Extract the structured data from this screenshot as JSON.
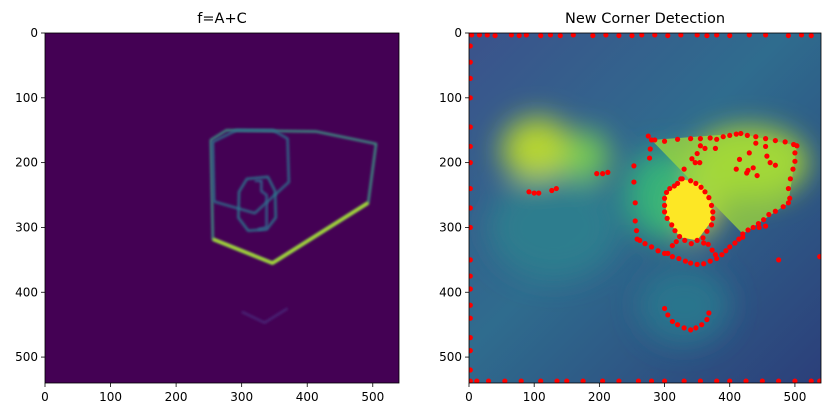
{
  "chart_data": [
    {
      "type": "image",
      "title": "f=A+C",
      "xlim": [
        0,
        540
      ],
      "ylim": [
        540,
        0
      ],
      "x_ticks": [
        0,
        100,
        200,
        300,
        400,
        500
      ],
      "y_ticks": [
        0,
        100,
        200,
        300,
        400,
        500
      ],
      "colormap": "viridis",
      "background_color": "#440154",
      "features": [
        {
          "name": "box-outer-right",
          "color": "#3e9a86",
          "points": [
            [
              277,
              150
            ],
            [
              414,
              152
            ],
            [
              505,
              171
            ],
            [
              493,
              262
            ],
            [
              347,
              355
            ],
            [
              256,
              318
            ],
            [
              253,
              165
            ]
          ]
        },
        {
          "name": "box-inner-face",
          "color": "#2f6f8c",
          "points": [
            [
              256,
              168
            ],
            [
              292,
              150
            ],
            [
              348,
              150
            ],
            [
              370,
              163
            ],
            [
              372,
              230
            ],
            [
              320,
              278
            ],
            [
              258,
              260
            ]
          ]
        },
        {
          "name": "octagon",
          "color": "#2a788e",
          "points": [
            [
              308,
              225
            ],
            [
              340,
              222
            ],
            [
              351,
              244
            ],
            [
              352,
              285
            ],
            [
              338,
              303
            ],
            [
              310,
              305
            ],
            [
              295,
              285
            ],
            [
              296,
              245
            ]
          ]
        },
        {
          "name": "small-step",
          "color": "#31688e",
          "points": [
            [
              320,
              228
            ],
            [
              330,
              228
            ],
            [
              330,
              244
            ],
            [
              338,
              250
            ],
            [
              338,
              300
            ],
            [
              325,
              303
            ]
          ]
        },
        {
          "name": "bright-base-edge",
          "color": "#b5de2b",
          "points": [
            [
              256,
              318
            ],
            [
              347,
              355
            ],
            [
              493,
              262
            ]
          ]
        },
        {
          "name": "faint-lower-feature",
          "color": "#482878",
          "points": [
            [
              300,
              430
            ],
            [
              335,
              447
            ],
            [
              370,
              425
            ]
          ]
        }
      ]
    },
    {
      "type": "scatter",
      "title": "New Corner Detection",
      "xlim": [
        0,
        540
      ],
      "ylim": [
        540,
        0
      ],
      "x_ticks": [
        0,
        100,
        200,
        300,
        400,
        500
      ],
      "y_ticks": [
        0,
        100,
        200,
        300,
        400,
        500
      ],
      "colormap": "viridis",
      "marker_color": "#ff0000",
      "background_color": "#3b528b",
      "blobs": [
        {
          "x": 105,
          "y": 180,
          "rx": 55,
          "ry": 50,
          "color": "#c4e12a"
        },
        {
          "x": 180,
          "y": 190,
          "rx": 35,
          "ry": 40,
          "color": "#7ad151"
        },
        {
          "x": 430,
          "y": 200,
          "rx": 90,
          "ry": 55,
          "color": "#b5de2b"
        },
        {
          "x": 340,
          "y": 265,
          "rx": 45,
          "ry": 50,
          "color": "#fde725"
        },
        {
          "x": 300,
          "y": 250,
          "rx": 60,
          "ry": 70,
          "color": "#35b779"
        },
        {
          "x": 330,
          "y": 420,
          "rx": 70,
          "ry": 60,
          "color": "#2a788e"
        },
        {
          "x": 130,
          "y": 300,
          "rx": 100,
          "ry": 80,
          "color": "#2c7f8e"
        }
      ],
      "corners": [
        [
          4,
          3
        ],
        [
          16,
          3
        ],
        [
          28,
          3
        ],
        [
          40,
          4
        ],
        [
          65,
          3
        ],
        [
          77,
          4
        ],
        [
          88,
          3
        ],
        [
          110,
          4
        ],
        [
          125,
          3
        ],
        [
          140,
          4
        ],
        [
          160,
          3
        ],
        [
          190,
          4
        ],
        [
          210,
          3
        ],
        [
          230,
          4
        ],
        [
          250,
          4
        ],
        [
          265,
          3
        ],
        [
          285,
          3
        ],
        [
          305,
          4
        ],
        [
          325,
          3
        ],
        [
          350,
          3
        ],
        [
          365,
          4
        ],
        [
          380,
          3
        ],
        [
          400,
          4
        ],
        [
          430,
          3
        ],
        [
          455,
          3
        ],
        [
          490,
          4
        ],
        [
          510,
          3
        ],
        [
          525,
          4
        ],
        [
          2,
          20
        ],
        [
          2,
          45
        ],
        [
          2,
          70
        ],
        [
          2,
          100
        ],
        [
          2,
          145
        ],
        [
          2,
          175
        ],
        [
          2,
          200
        ],
        [
          2,
          240
        ],
        [
          2,
          270
        ],
        [
          2,
          300
        ],
        [
          2,
          350
        ],
        [
          2,
          375
        ],
        [
          2,
          395
        ],
        [
          2,
          420
        ],
        [
          2,
          440
        ],
        [
          2,
          470
        ],
        [
          2,
          490
        ],
        [
          2,
          520
        ],
        [
          2,
          537
        ],
        [
          12,
          537
        ],
        [
          30,
          537
        ],
        [
          55,
          537
        ],
        [
          80,
          537
        ],
        [
          110,
          537
        ],
        [
          135,
          537
        ],
        [
          150,
          537
        ],
        [
          175,
          537
        ],
        [
          205,
          537
        ],
        [
          230,
          537
        ],
        [
          260,
          537
        ],
        [
          280,
          537
        ],
        [
          300,
          537
        ],
        [
          330,
          537
        ],
        [
          355,
          537
        ],
        [
          380,
          537
        ],
        [
          400,
          537
        ],
        [
          425,
          537
        ],
        [
          450,
          537
        ],
        [
          475,
          537
        ],
        [
          500,
          537
        ],
        [
          525,
          537
        ],
        [
          538,
          537
        ],
        [
          538,
          345
        ],
        [
          475,
          350
        ],
        [
          92,
          245
        ],
        [
          100,
          247
        ],
        [
          107,
          247
        ],
        [
          127,
          243
        ],
        [
          134,
          240
        ],
        [
          196,
          217
        ],
        [
          205,
          217
        ],
        [
          213,
          215
        ],
        [
          253,
          205
        ],
        [
          277,
          193
        ],
        [
          278,
          179
        ],
        [
          280,
          165
        ],
        [
          253,
          230
        ],
        [
          255,
          262
        ],
        [
          255,
          290
        ],
        [
          257,
          305
        ],
        [
          258,
          318
        ],
        [
          262,
          320
        ],
        [
          275,
          159
        ],
        [
          285,
          165
        ],
        [
          300,
          167
        ],
        [
          320,
          164
        ],
        [
          340,
          163
        ],
        [
          355,
          163
        ],
        [
          370,
          162
        ],
        [
          380,
          164
        ],
        [
          390,
          160
        ],
        [
          400,
          158
        ],
        [
          410,
          156
        ],
        [
          417,
          155
        ],
        [
          427,
          158
        ],
        [
          440,
          160
        ],
        [
          455,
          163
        ],
        [
          470,
          166
        ],
        [
          485,
          168
        ],
        [
          498,
          172
        ],
        [
          503,
          174
        ],
        [
          355,
          174
        ],
        [
          362,
          178
        ],
        [
          350,
          186
        ],
        [
          347,
          200
        ],
        [
          342,
          194
        ],
        [
          378,
          178
        ],
        [
          415,
          195
        ],
        [
          410,
          210
        ],
        [
          428,
          212
        ],
        [
          436,
          208
        ],
        [
          442,
          220
        ],
        [
          426,
          216
        ],
        [
          430,
          185
        ],
        [
          440,
          170
        ],
        [
          455,
          175
        ],
        [
          457,
          190
        ],
        [
          462,
          200
        ],
        [
          470,
          204
        ],
        [
          500,
          185
        ],
        [
          500,
          198
        ],
        [
          497,
          210
        ],
        [
          493,
          225
        ],
        [
          490,
          240
        ],
        [
          492,
          255
        ],
        [
          490,
          262
        ],
        [
          482,
          268
        ],
        [
          470,
          275
        ],
        [
          460,
          280
        ],
        [
          452,
          288
        ],
        [
          444,
          294
        ],
        [
          436,
          300
        ],
        [
          428,
          304
        ],
        [
          420,
          310
        ],
        [
          414,
          318
        ],
        [
          408,
          324
        ],
        [
          400,
          330
        ],
        [
          394,
          336
        ],
        [
          388,
          342
        ],
        [
          380,
          348
        ],
        [
          370,
          352
        ],
        [
          360,
          356
        ],
        [
          350,
          357
        ],
        [
          340,
          355
        ],
        [
          332,
          352
        ],
        [
          322,
          348
        ],
        [
          312,
          345
        ],
        [
          300,
          340
        ],
        [
          290,
          336
        ],
        [
          280,
          330
        ],
        [
          270,
          325
        ],
        [
          420,
          315
        ],
        [
          445,
          300
        ],
        [
          455,
          298
        ],
        [
          325,
          225
        ],
        [
          320,
          232
        ],
        [
          315,
          236
        ],
        [
          308,
          240
        ],
        [
          303,
          246
        ],
        [
          300,
          255
        ],
        [
          300,
          266
        ],
        [
          300,
          276
        ],
        [
          304,
          286
        ],
        [
          311,
          296
        ],
        [
          316,
          305
        ],
        [
          323,
          314
        ],
        [
          331,
          320
        ],
        [
          341,
          325
        ],
        [
          350,
          320
        ],
        [
          359,
          316
        ],
        [
          365,
          306
        ],
        [
          372,
          296
        ],
        [
          374,
          286
        ],
        [
          374,
          276
        ],
        [
          372,
          266
        ],
        [
          368,
          254
        ],
        [
          362,
          245
        ],
        [
          356,
          238
        ],
        [
          348,
          232
        ],
        [
          340,
          228
        ],
        [
          354,
          200
        ],
        [
          330,
          210
        ],
        [
          327,
          225
        ],
        [
          305,
          340
        ],
        [
          312,
          328
        ],
        [
          318,
          322
        ],
        [
          360,
          324
        ],
        [
          367,
          326
        ],
        [
          373,
          335
        ],
        [
          378,
          342
        ],
        [
          300,
          425
        ],
        [
          305,
          435
        ],
        [
          312,
          445
        ],
        [
          320,
          450
        ],
        [
          330,
          455
        ],
        [
          340,
          458
        ],
        [
          348,
          455
        ],
        [
          357,
          450
        ],
        [
          365,
          442
        ],
        [
          368,
          432
        ]
      ]
    }
  ]
}
